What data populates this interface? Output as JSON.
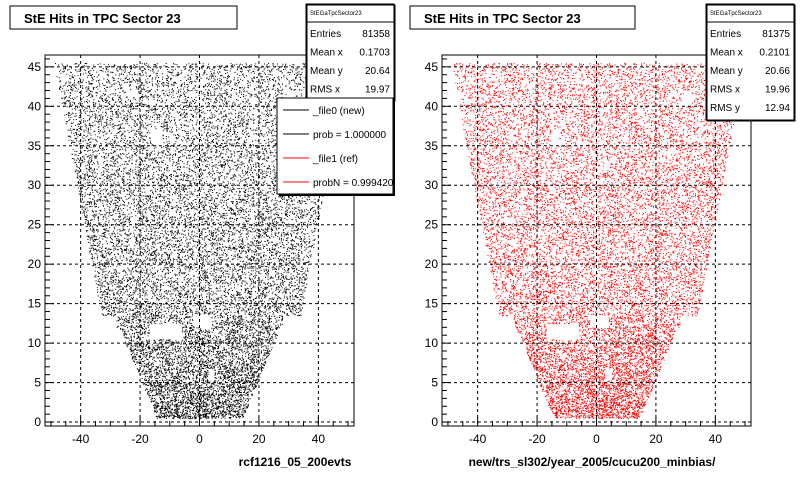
{
  "colors": {
    "new": "#000000",
    "ref": "#ff0000",
    "background": "#ffffff"
  },
  "chart_data": [
    {
      "type": "scatter",
      "title": "StE Hits in TPC Sector 23",
      "xlabel": "rcf1216_05_200evts",
      "xlim": [
        -52,
        52
      ],
      "ylim": [
        -0.5,
        46.5
      ],
      "xticks": [
        -40,
        -20,
        0,
        20,
        40
      ],
      "yticks": [
        0,
        5,
        10,
        15,
        20,
        25,
        30,
        35,
        40,
        45
      ],
      "grid": true,
      "series": [
        {
          "color": "#000000"
        }
      ],
      "stats": {
        "name": "StEGaTpcSector23",
        "rows": [
          {
            "label": "Entries",
            "value": "81358"
          },
          {
            "label": "Mean x",
            "value": "0.1703"
          },
          {
            "label": "Mean y",
            "value": "20.64"
          },
          {
            "label": "RMS x",
            "value": "19.97"
          }
        ]
      },
      "legend": {
        "placement": "top-right",
        "entries": [
          {
            "label": "_file0 (new)",
            "color": "#000000"
          },
          {
            "label": "prob = 1.000000",
            "color": "#000000"
          },
          {
            "label": "_file1 (ref)",
            "color": "#ff0000"
          },
          {
            "label": "probN = 0.999420",
            "color": "#ff0000"
          }
        ]
      }
    },
    {
      "type": "scatter",
      "title": "StE Hits in TPC Sector 23",
      "xlabel": "new/trs_sl302/year_2005/cucu200_minbias/",
      "xlim": [
        -52,
        52
      ],
      "ylim": [
        -0.5,
        46.5
      ],
      "xticks": [
        -40,
        -20,
        0,
        20,
        40
      ],
      "yticks": [
        0,
        5,
        10,
        15,
        20,
        25,
        30,
        35,
        40,
        45
      ],
      "grid": true,
      "series": [
        {
          "color": "#ff0000"
        }
      ],
      "stats": {
        "name": "StEGaTpcSector23",
        "rows": [
          {
            "label": "Entries",
            "value": "81375"
          },
          {
            "label": "Mean x",
            "value": "0.2101"
          },
          {
            "label": "Mean y",
            "value": "20.66"
          },
          {
            "label": "RMS x",
            "value": "19.96"
          },
          {
            "label": "RMS y",
            "value": "12.94"
          }
        ]
      }
    }
  ]
}
